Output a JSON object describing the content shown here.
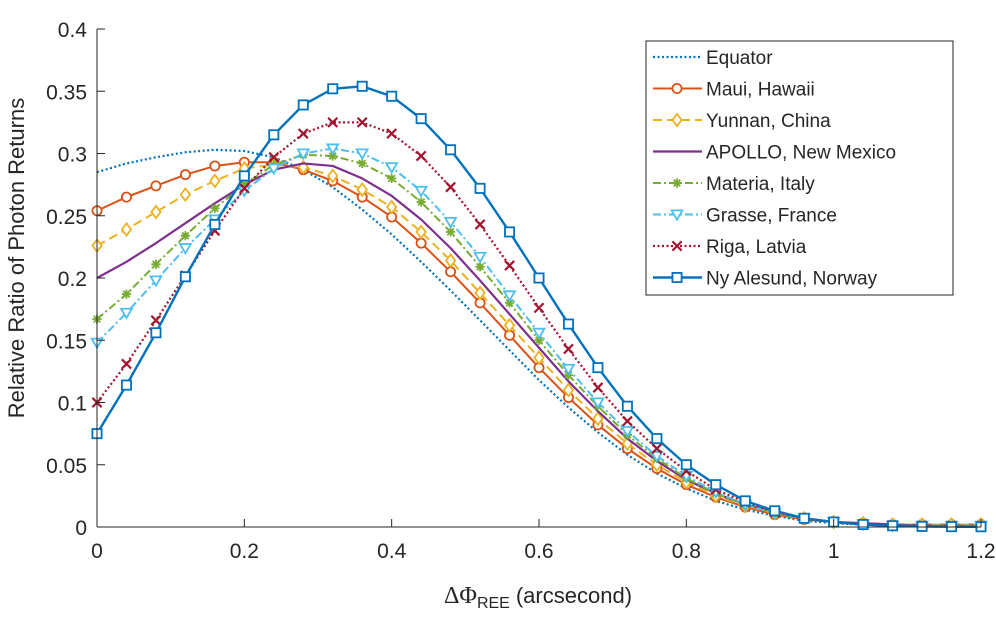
{
  "chart_data": {
    "type": "line",
    "title": "",
    "xlabel_symbol": "ΔΦ",
    "xlabel_sub": "REE",
    "xlabel_unit": "(arcsecond)",
    "ylabel": "Relative Ratio of Photon Returns",
    "xlim": [
      0,
      1.2
    ],
    "ylim": [
      0,
      0.4
    ],
    "xticks": [
      0,
      0.2,
      0.4,
      0.6,
      0.8,
      1,
      1.2
    ],
    "xtick_labels": [
      "0",
      "0.2",
      "0.4",
      "0.6",
      "0.8",
      "1",
      "1.2"
    ],
    "yticks": [
      0,
      0.05,
      0.1,
      0.15,
      0.2,
      0.25,
      0.3,
      0.35,
      0.4
    ],
    "ytick_labels": [
      "0",
      "0.05",
      "0.1",
      "0.15",
      "0.2",
      "0.25",
      "0.3",
      "0.35",
      "0.4"
    ],
    "grid": false,
    "legend_position": "top-right",
    "x": [
      0,
      0.04,
      0.08,
      0.12,
      0.16,
      0.2,
      0.24,
      0.28,
      0.32,
      0.36,
      0.4,
      0.44,
      0.48,
      0.52,
      0.56,
      0.6,
      0.64,
      0.68,
      0.72,
      0.76,
      0.8,
      0.84,
      0.88,
      0.92,
      0.96,
      1.0,
      1.04,
      1.08,
      1.12,
      1.16,
      1.2
    ],
    "series": [
      {
        "name": "Equator",
        "color": "#0072BD",
        "dash": "2,2.5",
        "marker": "none",
        "width": 2.2,
        "values": [
          0.285,
          0.292,
          0.297,
          0.301,
          0.303,
          0.302,
          0.297,
          0.287,
          0.273,
          0.255,
          0.235,
          0.213,
          0.19,
          0.166,
          0.142,
          0.118,
          0.096,
          0.076,
          0.058,
          0.043,
          0.031,
          0.021,
          0.014,
          0.009,
          0.005,
          0.003,
          0.002,
          0.001,
          0.0005,
          0.0003,
          0.0002
        ]
      },
      {
        "name": "Maui, Hawaii",
        "color": "#D95319",
        "dash": "",
        "marker": "circle",
        "width": 2,
        "values": [
          0.254,
          0.265,
          0.274,
          0.283,
          0.29,
          0.293,
          0.293,
          0.287,
          0.278,
          0.265,
          0.249,
          0.228,
          0.205,
          0.18,
          0.154,
          0.128,
          0.104,
          0.082,
          0.063,
          0.047,
          0.034,
          0.024,
          0.016,
          0.01,
          0.006,
          0.004,
          0.003,
          0.002,
          0.002,
          0.002,
          0.002
        ]
      },
      {
        "name": "Yunnan, China",
        "color": "#EDB120",
        "dash": "9,5",
        "marker": "diamond",
        "width": 2,
        "values": [
          0.226,
          0.239,
          0.253,
          0.267,
          0.278,
          0.288,
          0.291,
          0.289,
          0.282,
          0.271,
          0.257,
          0.237,
          0.214,
          0.188,
          0.162,
          0.136,
          0.11,
          0.087,
          0.067,
          0.05,
          0.036,
          0.025,
          0.017,
          0.011,
          0.007,
          0.004,
          0.003,
          0.002,
          0.002,
          0.002,
          0.002
        ]
      },
      {
        "name": "APOLLO, New Mexico",
        "color": "#7E2F8E",
        "dash": "",
        "marker": "none",
        "width": 2.2,
        "values": [
          0.2,
          0.213,
          0.228,
          0.244,
          0.26,
          0.275,
          0.287,
          0.292,
          0.29,
          0.28,
          0.266,
          0.247,
          0.224,
          0.198,
          0.171,
          0.144,
          0.117,
          0.093,
          0.071,
          0.053,
          0.038,
          0.027,
          0.018,
          0.012,
          0.007,
          0.004,
          0.003,
          0.002,
          0.001,
          0.001,
          0.001
        ]
      },
      {
        "name": "Materia, Italy",
        "color": "#77AC30",
        "dash": "8,3,2,3",
        "marker": "asterisk",
        "width": 2,
        "values": [
          0.167,
          0.187,
          0.211,
          0.234,
          0.256,
          0.275,
          0.291,
          0.299,
          0.298,
          0.292,
          0.28,
          0.261,
          0.237,
          0.209,
          0.18,
          0.15,
          0.122,
          0.097,
          0.074,
          0.055,
          0.039,
          0.027,
          0.018,
          0.011,
          0.007,
          0.004,
          0.002,
          0.001,
          0.001,
          0.001,
          0.001
        ]
      },
      {
        "name": "Grasse, France",
        "color": "#4DBEEE",
        "dash": "8,3,2,3",
        "marker": "triangle",
        "width": 2,
        "values": [
          0.148,
          0.172,
          0.198,
          0.224,
          0.247,
          0.27,
          0.288,
          0.3,
          0.304,
          0.3,
          0.289,
          0.27,
          0.245,
          0.217,
          0.186,
          0.156,
          0.127,
          0.1,
          0.077,
          0.057,
          0.041,
          0.028,
          0.018,
          0.011,
          0.007,
          0.004,
          0.002,
          0.001,
          0.001,
          0.001,
          0.001
        ]
      },
      {
        "name": "Riga, Latvia",
        "color": "#A2142F",
        "dash": "2,2.5",
        "marker": "x",
        "width": 2.2,
        "values": [
          0.1,
          0.131,
          0.166,
          0.202,
          0.238,
          0.272,
          0.297,
          0.316,
          0.325,
          0.325,
          0.316,
          0.298,
          0.273,
          0.243,
          0.21,
          0.176,
          0.143,
          0.112,
          0.085,
          0.063,
          0.045,
          0.03,
          0.02,
          0.012,
          0.007,
          0.004,
          0.002,
          0.001,
          0.0005,
          0.0003,
          0.0002
        ]
      },
      {
        "name": "Ny Alesund, Norway",
        "color": "#0072BD",
        "dash": "",
        "marker": "square",
        "width": 2.4,
        "values": [
          0.075,
          0.114,
          0.156,
          0.201,
          0.243,
          0.282,
          0.315,
          0.339,
          0.352,
          0.354,
          0.346,
          0.328,
          0.303,
          0.272,
          0.237,
          0.2,
          0.163,
          0.128,
          0.097,
          0.071,
          0.05,
          0.034,
          0.021,
          0.013,
          0.007,
          0.004,
          0.002,
          0.001,
          0.0005,
          0.0003,
          0.0002
        ]
      }
    ]
  }
}
